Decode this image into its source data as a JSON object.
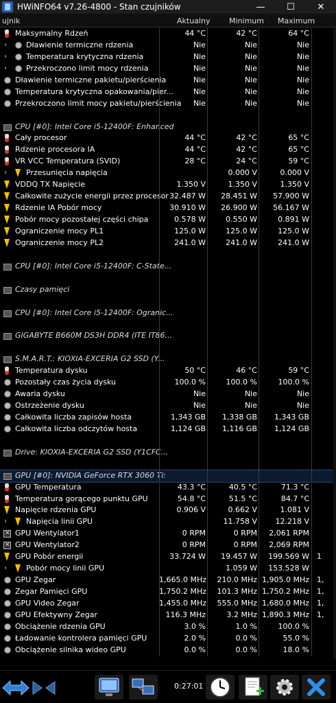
{
  "window": {
    "title": "HWiNFO64 v7.26-4800 - Stan czujników",
    "min_label": "—",
    "max_label": "☐",
    "close_label": "✕"
  },
  "columns": {
    "sensor": "ujnik",
    "current": "Aktualny",
    "minimum": "Minimum",
    "maximum": "Maximum"
  },
  "rows": [
    {
      "t": "s",
      "icon": "th",
      "name": "Maksymalny Rdzeń",
      "cur": "44 °C",
      "min": "42 °C",
      "max": "64 °C"
    },
    {
      "t": "s",
      "exp": true,
      "icon": "cl",
      "name": "Dławienie termiczne rdzenia",
      "cur": "Nie",
      "min": "Nie",
      "max": "Nie"
    },
    {
      "t": "s",
      "exp": true,
      "icon": "cl",
      "name": "Temperatura krytyczna rdzenia",
      "cur": "Nie",
      "min": "Nie",
      "max": "Nie"
    },
    {
      "t": "s",
      "exp": true,
      "icon": "cl",
      "name": "Przekroczono limit mocy rdzenia",
      "cur": "Nie",
      "min": "Nie",
      "max": "Nie"
    },
    {
      "t": "s",
      "icon": "cl",
      "name": "Dławienie termiczne pakietu/pierścienia",
      "cur": "Nie",
      "min": "Nie",
      "max": "Nie"
    },
    {
      "t": "s",
      "icon": "cl",
      "name": "Temperatura krytyczna opakowania/pier...",
      "cur": "Nie",
      "min": "Nie",
      "max": "Nie"
    },
    {
      "t": "s",
      "icon": "cl",
      "name": "Przekroczono limit mocy pakietu/pierścienia",
      "cur": "Nie",
      "min": "Nie",
      "max": "Nie"
    },
    {
      "t": "e"
    },
    {
      "t": "g",
      "name": "CPU [#0]: Intel Core i5-12400F: Enhanced"
    },
    {
      "t": "s",
      "icon": "th",
      "name": "Cały procesor",
      "cur": "44 °C",
      "min": "42 °C",
      "max": "65 °C"
    },
    {
      "t": "s",
      "icon": "th",
      "name": "Rdzenie procesora IA",
      "cur": "44 °C",
      "min": "42 °C",
      "max": "65 °C"
    },
    {
      "t": "s",
      "icon": "th",
      "name": "VR VCC Temperatura (SVID)",
      "cur": "28 °C",
      "min": "24 °C",
      "max": "59 °C"
    },
    {
      "t": "s",
      "exp": true,
      "icon": "bo",
      "name": "Przesunięcia napięcia",
      "cur": "",
      "min": "0.000 V",
      "max": "0.000 V"
    },
    {
      "t": "s",
      "icon": "bo",
      "name": "VDDQ TX Napięcie",
      "cur": "1.350 V",
      "min": "1.350 V",
      "max": "1.350 V"
    },
    {
      "t": "s",
      "icon": "bo",
      "name": "Całkowite zużycie energii przez procesor",
      "cur": "32.487 W",
      "min": "28.451 W",
      "max": "57.900 W"
    },
    {
      "t": "s",
      "icon": "bo",
      "name": "Rdzenie IA Pobór mocy",
      "cur": "30.910 W",
      "min": "26.900 W",
      "max": "56.167 W"
    },
    {
      "t": "s",
      "icon": "bo",
      "name": "Pobór mocy pozostałej części chipa",
      "cur": "0.578 W",
      "min": "0.550 W",
      "max": "0.891 W"
    },
    {
      "t": "s",
      "icon": "bo",
      "name": "Ograniczenie mocy PL1",
      "cur": "125.0 W",
      "min": "125.0 W",
      "max": "125.0 W"
    },
    {
      "t": "s",
      "icon": "bo",
      "name": "Ograniczenie mocy PL2",
      "cur": "241.0 W",
      "min": "241.0 W",
      "max": "241.0 W"
    },
    {
      "t": "e"
    },
    {
      "t": "g",
      "name": "CPU [#0]: Intel Core i5-12400F: C-State..."
    },
    {
      "t": "e"
    },
    {
      "t": "g",
      "name": "Czasy pamięci"
    },
    {
      "t": "e"
    },
    {
      "t": "g",
      "name": "CPU [#0]: Intel Core i5-12400F: Ogranic..."
    },
    {
      "t": "e"
    },
    {
      "t": "g",
      "name": "GIGABYTE B660M DS3H DDR4 (ITE IT86..."
    },
    {
      "t": "e"
    },
    {
      "t": "g",
      "name": "S.M.A.R.T.: KIOXIA-EXCERIA G2 SSD (Y..."
    },
    {
      "t": "s",
      "icon": "th",
      "name": "Temperatura dysku",
      "cur": "50 °C",
      "min": "46 °C",
      "max": "59 °C"
    },
    {
      "t": "s",
      "icon": "cl",
      "name": "Pozostały czas życia dysku",
      "cur": "100.0 %",
      "min": "100.0 %",
      "max": "100.0 %"
    },
    {
      "t": "s",
      "icon": "cl",
      "name": "Awaria dysku",
      "cur": "Nie",
      "min": "Nie",
      "max": "Nie"
    },
    {
      "t": "s",
      "icon": "cl",
      "name": "Ostrzeżenie dysku",
      "cur": "Nie",
      "min": "Nie",
      "max": "Nie"
    },
    {
      "t": "s",
      "icon": "cl",
      "name": "Całkowita liczba zapisów hosta",
      "cur": "1,343 GB",
      "min": "1,338 GB",
      "max": "1,343 GB"
    },
    {
      "t": "s",
      "icon": "cl",
      "name": "Całkowita liczba odczytów hosta",
      "cur": "1,124 GB",
      "min": "1,116 GB",
      "max": "1,124 GB"
    },
    {
      "t": "e"
    },
    {
      "t": "g",
      "name": "Drive: KIOXIA-EXCERIA G2 SSD (Y1CFC..."
    },
    {
      "t": "e"
    },
    {
      "t": "g",
      "sel": true,
      "name": "GPU [#0]: NVIDIA GeForce RTX 3060 Ti:"
    },
    {
      "t": "s",
      "icon": "th",
      "name": "GPU Temperatura",
      "cur": "43.3 °C",
      "min": "40.5 °C",
      "max": "71.3 °C"
    },
    {
      "t": "s",
      "icon": "th",
      "name": "Temperatura gorącego punktu GPU",
      "cur": "54.8 °C",
      "min": "51.5 °C",
      "max": "84.7 °C"
    },
    {
      "t": "s",
      "icon": "bo",
      "name": "Napięcie rdzenia GPU",
      "cur": "0.906 V",
      "min": "0.662 V",
      "max": "1.081 V"
    },
    {
      "t": "s",
      "exp": true,
      "icon": "bo",
      "name": "Napięcia linii GPU",
      "cur": "",
      "min": "11.758 V",
      "max": "12.218 V"
    },
    {
      "t": "s",
      "icon": "fan",
      "name": "GPU Wentylator1",
      "cur": "0 RPM",
      "min": "0 RPM",
      "max": "2,061 RPM"
    },
    {
      "t": "s",
      "icon": "fan",
      "name": "GPU Wentylator2",
      "cur": "0 RPM",
      "min": "0 RPM",
      "max": "2,069 RPM"
    },
    {
      "t": "s",
      "icon": "bo",
      "name": "GPU Pobór energii",
      "cur": "33.724 W",
      "min": "19.457 W",
      "max": "199.569 W",
      "cut": "1"
    },
    {
      "t": "s",
      "exp": true,
      "icon": "bo",
      "name": "Pobór mocy linii GPU",
      "cur": "",
      "min": "1.059 W",
      "max": "153.528 W"
    },
    {
      "t": "s",
      "icon": "cl",
      "name": "GPU Zegar",
      "cur": "1,665.0 MHz",
      "min": "210.0 MHz",
      "max": "1,905.0 MHz",
      "cut": "1,"
    },
    {
      "t": "s",
      "icon": "cl",
      "name": "Zegar Pamięci GPU",
      "cur": "1,750.2 MHz",
      "min": "101.3 MHz",
      "max": "1,750.2 MHz",
      "cut": "1,"
    },
    {
      "t": "s",
      "icon": "cl",
      "name": "GPU Video Zegar",
      "cur": "1,455.0 MHz",
      "min": "555.0 MHz",
      "max": "1,680.0 MHz",
      "cut": "1,"
    },
    {
      "t": "s",
      "icon": "cl",
      "name": "GPU Efektywny Zegar",
      "cur": "116.3 MHz",
      "min": "3.2 MHz",
      "max": "1,890.3 MHz",
      "cut": "1,"
    },
    {
      "t": "s",
      "icon": "cl",
      "name": "Obciążenie rdzenia GPU",
      "cur": "3.0 %",
      "min": "1.0 %",
      "max": "100.0 %"
    },
    {
      "t": "s",
      "icon": "cl",
      "name": "Ładowanie kontrolera pamięci GPU",
      "cur": "2.0 %",
      "min": "0.0 %",
      "max": "55.0 %"
    },
    {
      "t": "s",
      "icon": "cl",
      "name": "Obciążenie silnika wideo GPU",
      "cur": "0.0 %",
      "min": "0.0 %",
      "max": "18.0 %"
    }
  ],
  "toolbar": {
    "elapsed": "0:27:01"
  },
  "colors": {
    "bg": "#000000",
    "title_bg": "#1d1d1d",
    "selected": "#0b1a33"
  }
}
